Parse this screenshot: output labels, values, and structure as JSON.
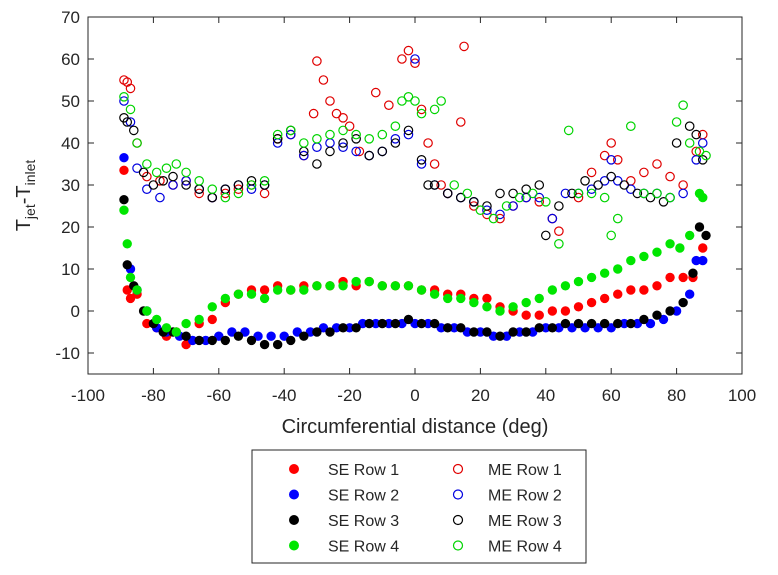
{
  "chart_data": {
    "type": "scatter",
    "title": "",
    "xlabel": "Circumferential distance (deg)",
    "ylabel_main": "T",
    "ylabel_sub1": "jet",
    "ylabel_mid": "-T",
    "ylabel_sub2": "inlet",
    "xlim": [
      -100,
      100
    ],
    "ylim": [
      -15,
      70
    ],
    "xticks": [
      -100,
      -80,
      -60,
      -40,
      -20,
      0,
      20,
      40,
      60,
      80,
      100
    ],
    "yticks": [
      -10,
      0,
      10,
      20,
      30,
      40,
      50,
      60,
      70
    ],
    "grid": false,
    "legend_position": "bottom-center, outside plot",
    "series": [
      {
        "name": "SE Row 1",
        "marker": "filled",
        "color": "#ff0000",
        "x": [
          -89,
          -88,
          -87,
          -85,
          -82,
          -79,
          -76,
          -73,
          -70,
          -66,
          -62,
          -58,
          -54,
          -50,
          -46,
          -42,
          -38,
          -34,
          -30,
          -26,
          -22,
          -18,
          -14,
          -10,
          -6,
          -2,
          2,
          6,
          10,
          14,
          18,
          22,
          26,
          30,
          34,
          38,
          42,
          46,
          50,
          54,
          58,
          62,
          66,
          70,
          74,
          78,
          82,
          85,
          88
        ],
        "y": [
          33.5,
          5,
          3,
          4,
          -3,
          -4,
          -6,
          -5,
          -8,
          -3,
          -2,
          2,
          4,
          5,
          5,
          6,
          5,
          6,
          6,
          6,
          7,
          6,
          7,
          6,
          6,
          6,
          5,
          5,
          4,
          4,
          3,
          3,
          1,
          0,
          -1,
          -1,
          0,
          0,
          1,
          2,
          3,
          4,
          5,
          5,
          6,
          8,
          8,
          8,
          15
        ]
      },
      {
        "name": "SE Row 2",
        "marker": "filled",
        "color": "#0000ff",
        "x": [
          -89,
          -87,
          -85,
          -82,
          -79,
          -76,
          -72,
          -68,
          -64,
          -60,
          -56,
          -52,
          -48,
          -44,
          -40,
          -36,
          -32,
          -28,
          -24,
          -20,
          -16,
          -12,
          -8,
          -4,
          0,
          4,
          8,
          12,
          16,
          20,
          24,
          28,
          32,
          36,
          40,
          44,
          48,
          52,
          56,
          60,
          64,
          68,
          72,
          76,
          80,
          84,
          86,
          88
        ],
        "y": [
          36.5,
          10,
          5,
          0,
          -4,
          -5,
          -6,
          -7,
          -7,
          -6,
          -5,
          -5,
          -6,
          -6,
          -6,
          -5,
          -5,
          -4,
          -4,
          -4,
          -3,
          -3,
          -3,
          -3,
          -3,
          -3,
          -4,
          -4,
          -5,
          -5,
          -6,
          -6,
          -5,
          -5,
          -4,
          -4,
          -4,
          -4,
          -4,
          -4,
          -3,
          -3,
          -3,
          -2,
          0,
          4,
          12,
          12
        ]
      },
      {
        "name": "SE Row 3",
        "marker": "filled",
        "color": "#000000",
        "x": [
          -89,
          -88,
          -86,
          -83,
          -80,
          -77,
          -74,
          -70,
          -66,
          -62,
          -58,
          -54,
          -50,
          -46,
          -42,
          -38,
          -34,
          -30,
          -26,
          -22,
          -18,
          -14,
          -10,
          -6,
          -2,
          2,
          6,
          10,
          14,
          18,
          22,
          26,
          30,
          34,
          38,
          42,
          46,
          50,
          54,
          58,
          62,
          66,
          70,
          74,
          78,
          82,
          85,
          87,
          89
        ],
        "y": [
          26.5,
          11,
          6,
          0,
          -3,
          -5,
          -5,
          -6,
          -7,
          -7,
          -7,
          -6,
          -7,
          -8,
          -8,
          -7,
          -6,
          -5,
          -5,
          -4,
          -4,
          -3,
          -3,
          -3,
          -2,
          -3,
          -3,
          -4,
          -4,
          -5,
          -5,
          -6,
          -5,
          -5,
          -4,
          -4,
          -3,
          -3,
          -3,
          -3,
          -3,
          -3,
          -2,
          -1,
          0,
          2,
          9,
          20,
          18
        ]
      },
      {
        "name": "SE Row 4",
        "marker": "filled",
        "color": "#00e600",
        "x": [
          -89,
          -88,
          -87,
          -85,
          -82,
          -79,
          -76,
          -73,
          -70,
          -66,
          -62,
          -58,
          -54,
          -50,
          -46,
          -42,
          -38,
          -34,
          -30,
          -26,
          -22,
          -18,
          -14,
          -10,
          -6,
          -2,
          2,
          6,
          10,
          14,
          18,
          22,
          26,
          30,
          34,
          38,
          42,
          46,
          50,
          54,
          58,
          62,
          66,
          70,
          74,
          78,
          81,
          84,
          87,
          88
        ],
        "y": [
          24,
          16,
          8,
          5,
          0,
          -2,
          -4,
          -5,
          -3,
          -2,
          1,
          3,
          4,
          4,
          3,
          5,
          5,
          5,
          6,
          6,
          6,
          7,
          7,
          6,
          6,
          6,
          5,
          4,
          3,
          3,
          2,
          1,
          0,
          1,
          2,
          3,
          5,
          6,
          7,
          8,
          9,
          10,
          12,
          13,
          14,
          16,
          15,
          18,
          28,
          27
        ]
      },
      {
        "name": "ME Row 1",
        "marker": "open",
        "color": "#e00000",
        "x": [
          -89,
          -88,
          -87,
          -85,
          -82,
          -78,
          -74,
          -70,
          -66,
          -62,
          -58,
          -54,
          -50,
          -46,
          -42,
          -38,
          -34,
          -31,
          -30,
          -28,
          -26,
          -24,
          -22,
          -20,
          -17,
          -12,
          -8,
          -4,
          -2,
          0,
          2,
          4,
          6,
          8,
          10,
          14,
          15,
          18,
          22,
          26,
          30,
          34,
          38,
          42,
          44,
          50,
          54,
          58,
          60,
          62,
          66,
          70,
          74,
          78,
          82,
          86,
          88
        ],
        "y": [
          55,
          54.5,
          53,
          40,
          32,
          31,
          30,
          31,
          28,
          27,
          28,
          29,
          30,
          28,
          41,
          42,
          37,
          47,
          59.5,
          55,
          50,
          47,
          46,
          44,
          38,
          52,
          49,
          60,
          62,
          59,
          48,
          40,
          35,
          30,
          28,
          45,
          63,
          25,
          23,
          22,
          25,
          27,
          26,
          22,
          19,
          27,
          33,
          37,
          40,
          36,
          31,
          33,
          35,
          32,
          30,
          38,
          42
        ]
      },
      {
        "name": "ME Row 2",
        "marker": "open",
        "color": "#0000e0",
        "x": [
          -89,
          -87,
          -85,
          -82,
          -78,
          -74,
          -70,
          -66,
          -62,
          -58,
          -54,
          -50,
          -46,
          -42,
          -38,
          -34,
          -30,
          -26,
          -22,
          -18,
          -14,
          -10,
          -6,
          -2,
          0,
          2,
          6,
          10,
          14,
          18,
          22,
          26,
          30,
          34,
          38,
          42,
          46,
          50,
          54,
          58,
          60,
          62,
          66,
          70,
          74,
          78,
          82,
          86,
          88
        ],
        "y": [
          50,
          45,
          34,
          29,
          27,
          30,
          31,
          29,
          27,
          29,
          30,
          29,
          30,
          40,
          42,
          37,
          39,
          40,
          39,
          38,
          37,
          38,
          41,
          42,
          60,
          35,
          30,
          28,
          27,
          26,
          24,
          23,
          25,
          27,
          27,
          22,
          28,
          28,
          29,
          31,
          36,
          31,
          29,
          28,
          28,
          27,
          28,
          36,
          40
        ]
      },
      {
        "name": "ME Row 3",
        "marker": "open",
        "color": "#000000",
        "x": [
          -89,
          -88,
          -86,
          -83,
          -80,
          -77,
          -74,
          -70,
          -66,
          -62,
          -58,
          -54,
          -50,
          -46,
          -42,
          -38,
          -34,
          -30,
          -26,
          -22,
          -18,
          -14,
          -10,
          -6,
          -2,
          2,
          4,
          6,
          10,
          14,
          18,
          22,
          26,
          30,
          34,
          38,
          40,
          44,
          48,
          52,
          56,
          60,
          64,
          68,
          72,
          76,
          80,
          84,
          86,
          88
        ],
        "y": [
          46,
          45,
          43,
          33,
          30,
          31,
          32,
          30,
          29,
          27,
          29,
          30,
          31,
          30,
          41,
          43,
          38,
          35,
          38,
          40,
          41,
          37,
          38,
          40,
          43,
          36,
          30,
          30,
          28,
          27,
          26,
          25,
          28,
          28,
          29,
          30,
          18,
          25,
          28,
          31,
          30,
          32,
          30,
          28,
          27,
          26,
          40,
          44,
          42,
          36
        ]
      },
      {
        "name": "ME Row 4",
        "marker": "open",
        "color": "#00d400",
        "x": [
          -89,
          -87,
          -85,
          -82,
          -79,
          -76,
          -73,
          -70,
          -66,
          -62,
          -58,
          -54,
          -50,
          -46,
          -42,
          -38,
          -34,
          -30,
          -26,
          -22,
          -18,
          -14,
          -10,
          -6,
          -4,
          -2,
          0,
          2,
          6,
          8,
          12,
          16,
          20,
          24,
          28,
          32,
          36,
          40,
          44,
          47,
          50,
          54,
          58,
          60,
          62,
          66,
          70,
          74,
          78,
          80,
          82,
          84,
          87,
          89
        ],
        "y": [
          51,
          48,
          40,
          35,
          33,
          34,
          35,
          33,
          31,
          29,
          27,
          28,
          30,
          31,
          42,
          43,
          40,
          41,
          42,
          43,
          42,
          41,
          42,
          44,
          50,
          51,
          50,
          47,
          48,
          50,
          30,
          28,
          24,
          22,
          25,
          27,
          28,
          26,
          16,
          43,
          28,
          28,
          27,
          18,
          22,
          44,
          28,
          28,
          27,
          45,
          49,
          40,
          38,
          37
        ]
      }
    ]
  }
}
